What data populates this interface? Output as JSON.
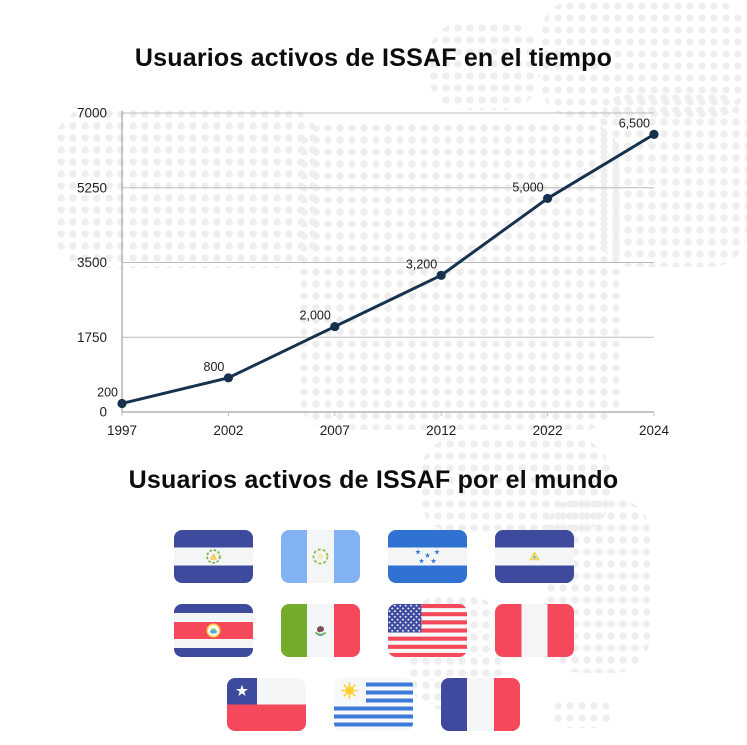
{
  "chart_data": {
    "type": "line",
    "title": "Usuarios activos de ISSAF en el tiempo",
    "categories": [
      "1997",
      "2002",
      "2007",
      "2012",
      "2022",
      "2024"
    ],
    "values": [
      200,
      800,
      2000,
      3200,
      5000,
      6500
    ],
    "point_labels": [
      "200",
      "800",
      "2,000",
      "3,200",
      "5,000",
      "6,500"
    ],
    "y_ticks": [
      0,
      1750,
      3500,
      5250,
      7000
    ],
    "y_tick_labels": [
      "0",
      "1750",
      "3500",
      "5250",
      "7000"
    ],
    "ylim": [
      0,
      7000
    ],
    "xlabel": "",
    "ylabel": "",
    "grid": "horizontal",
    "legend": "none",
    "line_color": "#16324E",
    "marker": "circle"
  },
  "world": {
    "title": "Usuarios activos de ISSAF por el mundo",
    "rows": [
      [
        "El Salvador",
        "Guatemala",
        "Honduras",
        "Nicaragua"
      ],
      [
        "Costa Rica",
        "México",
        "Estados Unidos",
        "Perú"
      ],
      [
        "Chile",
        "Uruguay",
        "Francia"
      ]
    ]
  },
  "style": {
    "background": "#ffffff",
    "dot_pattern_color": "#eeeeef",
    "title_color": "#0c0c0c",
    "gridline_color": "#bcbcbc",
    "axis_color": "#a5a5a5",
    "tick_label_color": "#1e1e1e"
  }
}
